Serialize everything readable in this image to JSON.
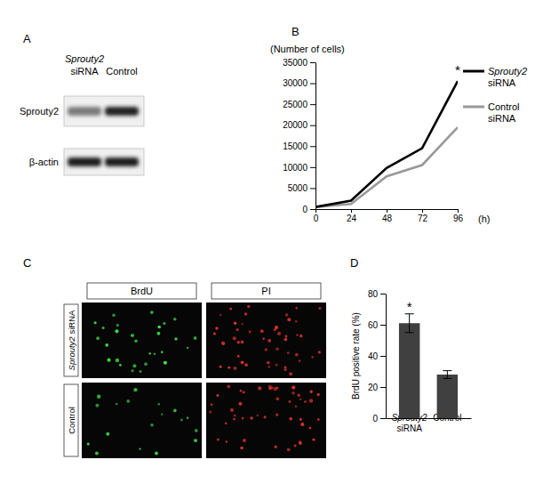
{
  "blot": {
    "panel": "A",
    "lanes": [
      "Sprouty2 siRNA",
      "Control"
    ],
    "rows": [
      "Sprouty2",
      "β-actin"
    ]
  },
  "micrographs": {
    "panel": "C",
    "columns": [
      "BrdU",
      "PI"
    ],
    "rows": [
      "Sprouty2 siRNA",
      "Control"
    ]
  },
  "chart_data": [
    {
      "panel": "B",
      "type": "line",
      "y_label": "(Number of cells)",
      "x_label": "(h)",
      "x": [
        0,
        24,
        48,
        72,
        96
      ],
      "series": [
        {
          "name": "Sprouty2 siRNA",
          "color": "#000000",
          "line_style": "solid",
          "values": [
            500,
            2000,
            9800,
            14500,
            30500
          ]
        },
        {
          "name": "Control siRNA",
          "color": "#999999",
          "line_style": "solid",
          "values": [
            500,
            1200,
            7800,
            10500,
            19500
          ]
        }
      ],
      "xlim": [
        0,
        96
      ],
      "xticks": [
        0,
        24,
        48,
        72,
        96
      ],
      "ylim": [
        0,
        35000
      ],
      "yticks": [
        0,
        5000,
        10000,
        15000,
        20000,
        25000,
        30000,
        35000
      ],
      "legend": "right",
      "annotations": [
        {
          "text": "*",
          "series": 0,
          "index": 4
        }
      ]
    },
    {
      "panel": "D",
      "type": "bar",
      "y_label": "BrdU positive rate (%)",
      "categories": [
        "Sprouty2 siRNA",
        "Control"
      ],
      "values": [
        61,
        28
      ],
      "errors": [
        6,
        2.5
      ],
      "color": "#404040",
      "ylim": [
        0,
        80
      ],
      "yticks": [
        0,
        20,
        40,
        60,
        80
      ],
      "annotations": [
        {
          "text": "*",
          "index": 0
        }
      ]
    }
  ]
}
